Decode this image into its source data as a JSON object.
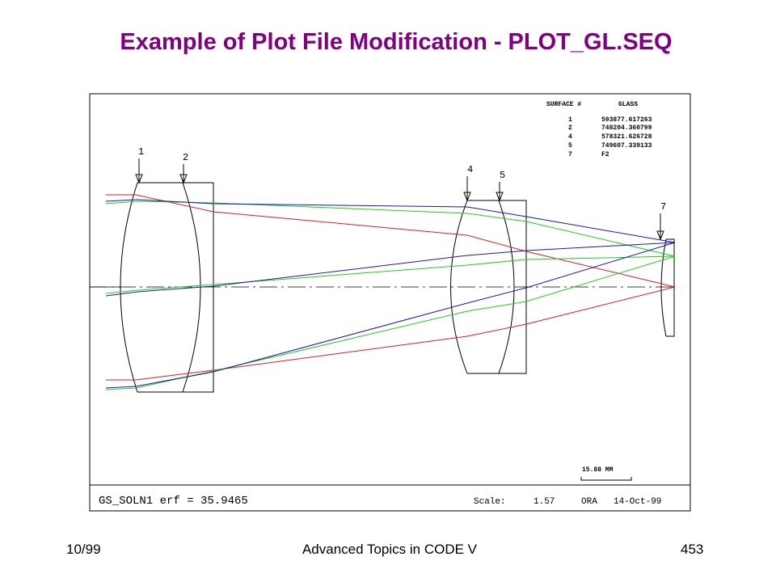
{
  "slide": {
    "title": "Example of Plot File Modification - PLOT_GL.SEQ",
    "footer_left": "10/99",
    "footer_center": "Advanced Topics in CODE V",
    "footer_right": "453"
  },
  "plot": {
    "table": {
      "header_surface": "SURFACE #",
      "header_glass": "GLASS",
      "rows": [
        {
          "surface": "1",
          "glass": "593877.617263"
        },
        {
          "surface": "2",
          "glass": "748204.360799"
        },
        {
          "surface": "4",
          "glass": "578321.626728"
        },
        {
          "surface": "5",
          "glass": "749607.339133"
        },
        {
          "surface": "7",
          "glass": "F2"
        }
      ]
    },
    "surface_labels": [
      "1",
      "2",
      "4",
      "5",
      "7"
    ],
    "scale_bar_label": "15.88  MM",
    "footer_left": "GS_SOLN1  erf = 35.9465",
    "scale_label": "Scale:",
    "scale_value": "1.57",
    "org": "ORA",
    "date": "14-Oct-99",
    "ray_colors": {
      "red": "#d42020",
      "green": "#22cc22",
      "blue": "#1a1aa8"
    }
  }
}
